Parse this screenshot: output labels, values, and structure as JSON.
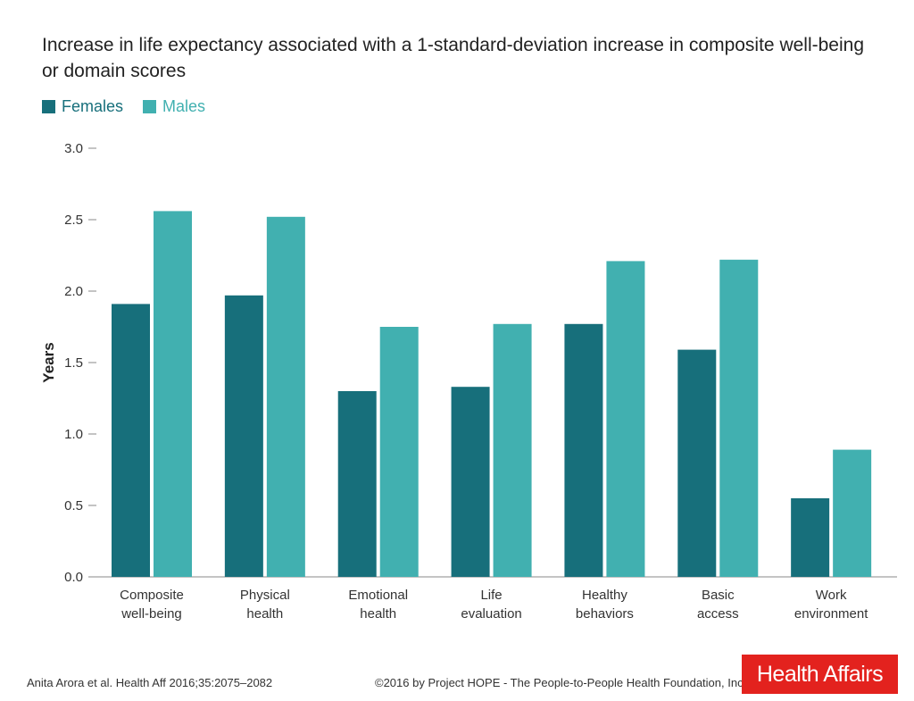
{
  "colors": {
    "females": "#176f7b",
    "males": "#41b0b0",
    "brand": "#e3221e"
  },
  "chart_data": {
    "type": "bar",
    "title": "Increase in life expectancy associated with a 1-standard-deviation increase in composite well-being or domain scores",
    "xlabel": "",
    "ylabel": "Years",
    "ylim": [
      0,
      3.0
    ],
    "yticks": [
      "0.0",
      "0.5",
      "1.0",
      "1.5",
      "2.0",
      "2.5",
      "3.0"
    ],
    "categories": [
      [
        "Composite",
        "well-being"
      ],
      [
        "Physical",
        "health"
      ],
      [
        "Emotional",
        "health"
      ],
      [
        "Life",
        "evaluation"
      ],
      [
        "Healthy",
        "behaviors"
      ],
      [
        "Basic",
        "access"
      ],
      [
        "Work",
        "environment"
      ]
    ],
    "series": [
      {
        "name": "Females",
        "values": [
          1.91,
          1.97,
          1.3,
          1.33,
          1.77,
          1.59,
          0.55
        ]
      },
      {
        "name": "Males",
        "values": [
          2.56,
          2.52,
          1.75,
          1.77,
          2.21,
          2.22,
          0.89
        ]
      }
    ],
    "legend_position": "top-left"
  },
  "footer": {
    "citation": "Anita Arora et al. Health Aff 2016;35:2075–2082",
    "copyright": "©2016 by Project HOPE - The People-to-People Health Foundation, Inc.",
    "brand": "Health Affairs"
  }
}
